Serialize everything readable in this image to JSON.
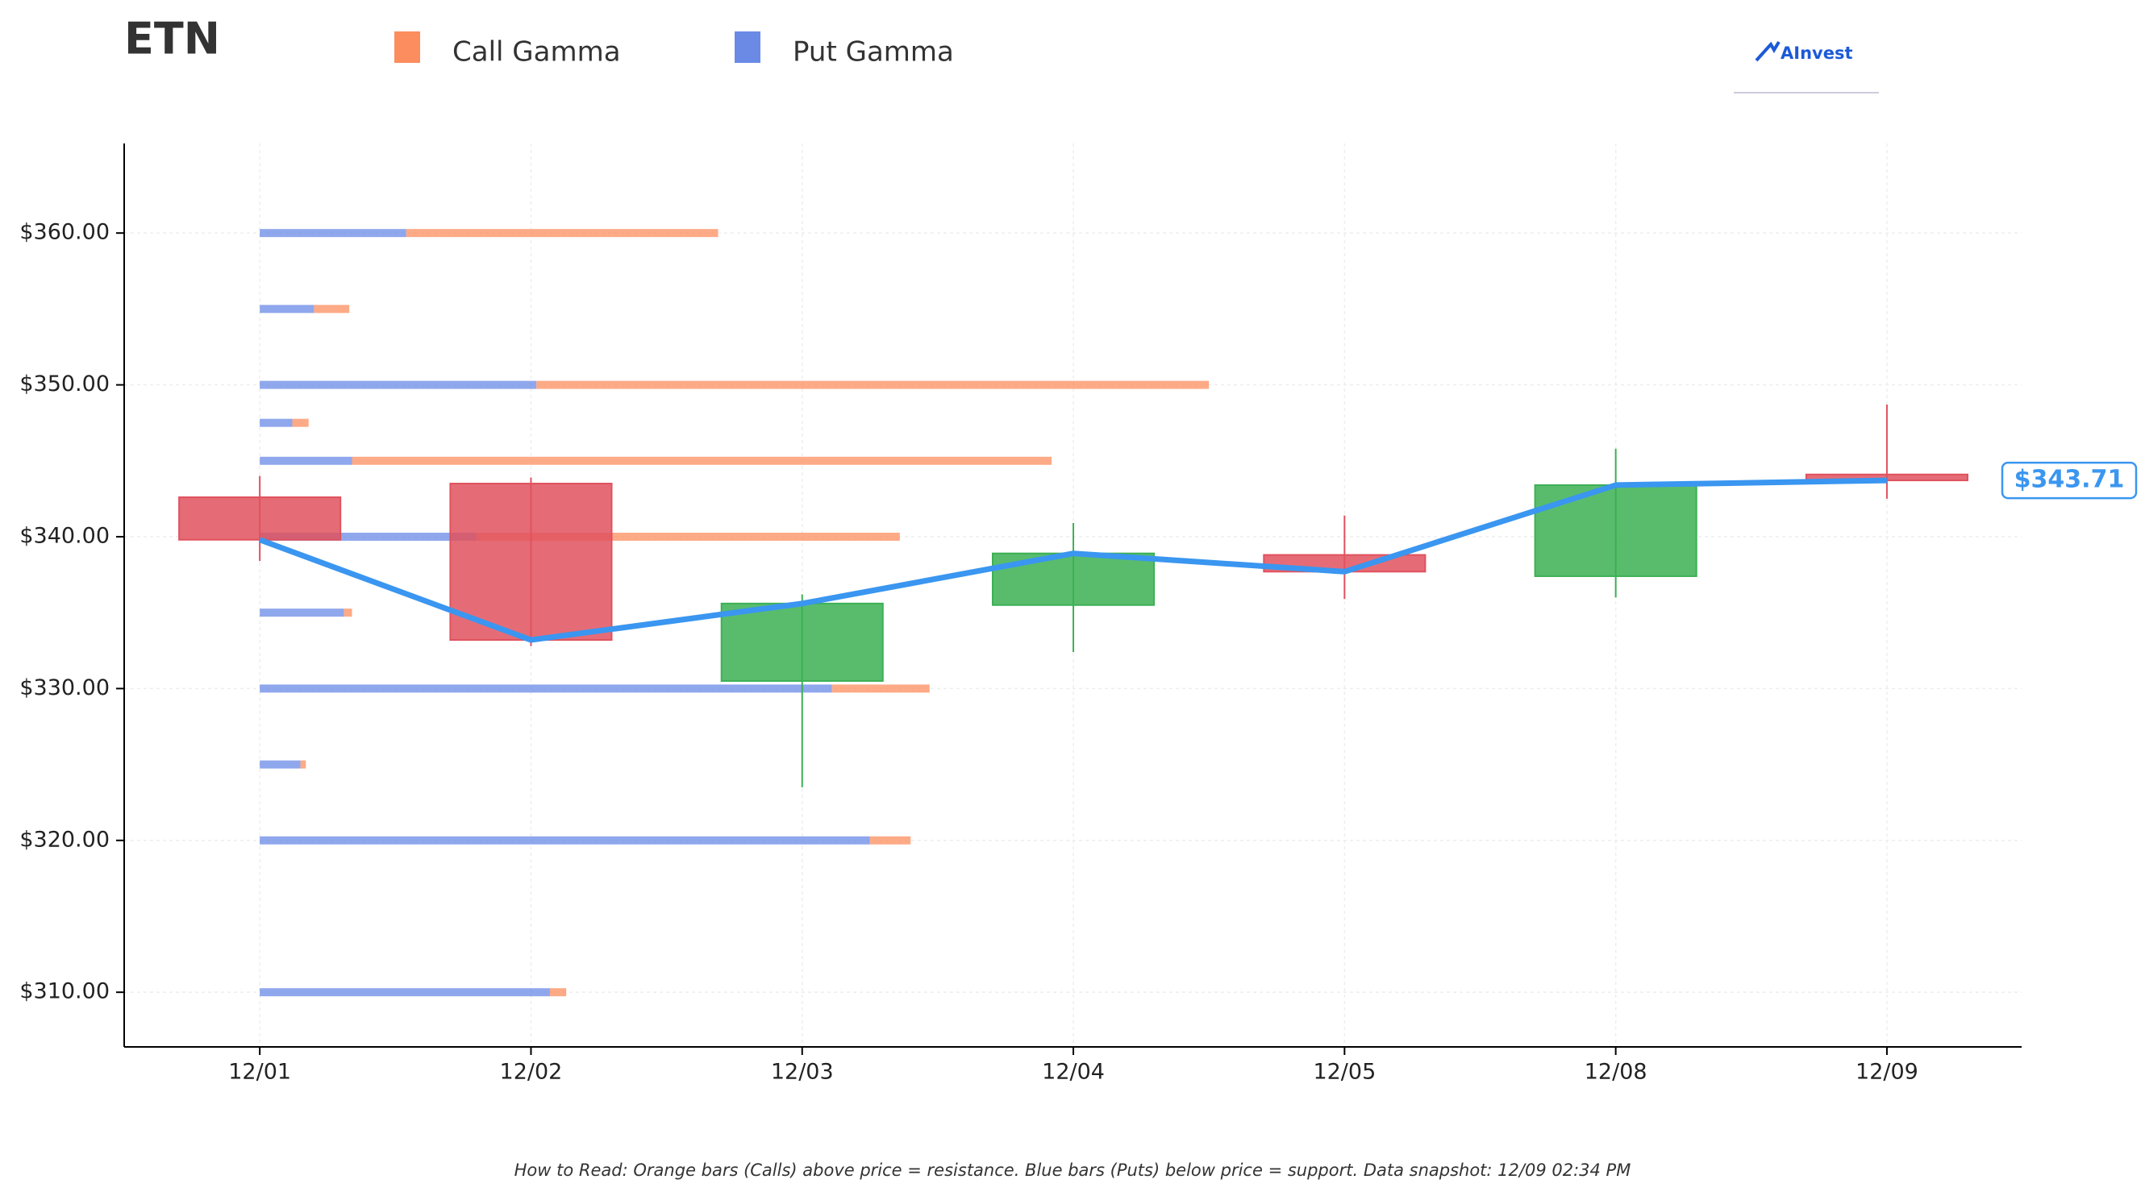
{
  "chart_data": {
    "type": "candlestick-gamma",
    "title": "ETN",
    "logo": "AInvest",
    "footnote": "How to Read: Orange bars (Calls) above price = resistance. Blue bars (Puts) below price = support. Data snapshot: 12/09 02:34 PM",
    "categories": [
      "12/01",
      "12/02",
      "12/03",
      "12/04",
      "12/05",
      "12/08",
      "12/09"
    ],
    "candles": {
      "open": [
        342.6,
        343.5,
        330.5,
        335.5,
        338.8,
        337.4,
        344.1
      ],
      "high": [
        344.0,
        343.9,
        336.2,
        340.9,
        341.4,
        345.8,
        348.7
      ],
      "low": [
        338.4,
        332.8,
        323.5,
        332.4,
        335.9,
        336.0,
        342.5
      ],
      "close": [
        339.8,
        333.2,
        335.6,
        338.9,
        337.7,
        343.4,
        343.71
      ],
      "up_color": "#3cb054",
      "down_color": "#e0525e",
      "line_color": "#3a96f0"
    },
    "current_price_label": "$343.71",
    "gamma": {
      "strikes": [
        360,
        355,
        350,
        347.5,
        345,
        340,
        335,
        330,
        325,
        320,
        310
      ],
      "series": [
        {
          "name": "Put Gamma",
          "color": "#6a8ae6",
          "values": [
            0.54,
            0.2,
            1.02,
            0.12,
            0.34,
            0.8,
            0.31,
            2.11,
            0.15,
            2.25,
            1.07
          ]
        },
        {
          "name": "Call Gamma",
          "color": "#fc8d5e",
          "values": [
            1.15,
            0.13,
            2.48,
            0.06,
            2.58,
            1.56,
            0.03,
            0.36,
            0.02,
            0.15,
            0.06
          ]
        }
      ]
    },
    "ylim": [
      306.4,
      365.9
    ],
    "yticks": [
      {
        "value": 310,
        "label": "$310.00"
      },
      {
        "value": 320,
        "label": "$320.00"
      },
      {
        "value": 330,
        "label": "$330.00"
      },
      {
        "value": 340,
        "label": "$340.00"
      },
      {
        "value": 350,
        "label": "$350.00"
      },
      {
        "value": 360,
        "label": "$360.00"
      }
    ],
    "grid": true
  }
}
